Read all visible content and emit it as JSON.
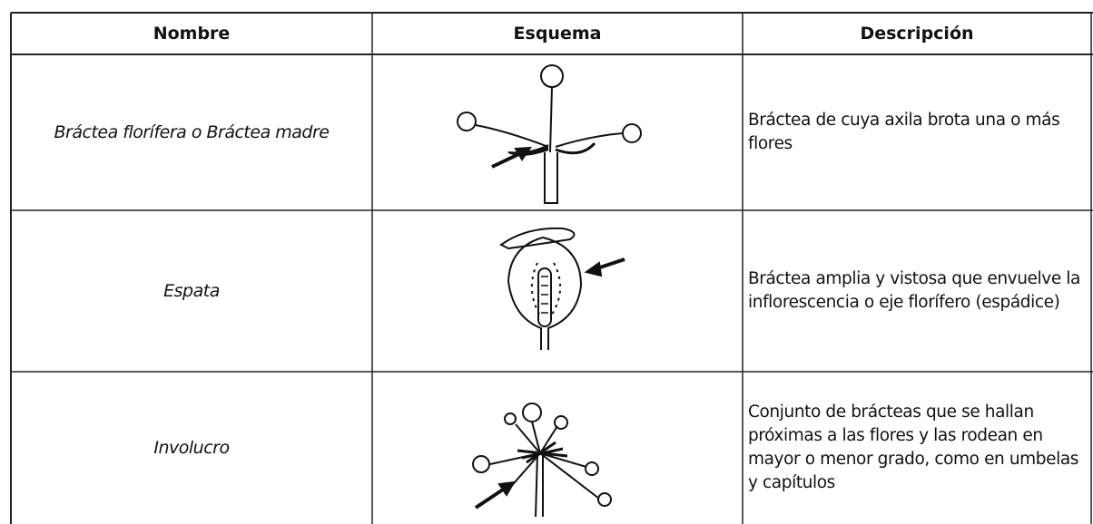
{
  "table": {
    "header": [
      "Nombre",
      "Esquema",
      "Descripción"
    ],
    "rows": [
      [
        "Bráctea florífera o Bráctea madre",
        "Bráctea de cuya axila brota una o más flores"
      ],
      [
        "Espata",
        "Bráctea amplia y vistosa que envuelve la inflorescencia o eje florífero (espádice)"
      ],
      [
        "Involucro",
        "Conjunto de brácteas que se hallan próximas a las flores y las rodean en mayor o menor grado, como en umbelas y capítulos"
      ]
    ]
  }
}
